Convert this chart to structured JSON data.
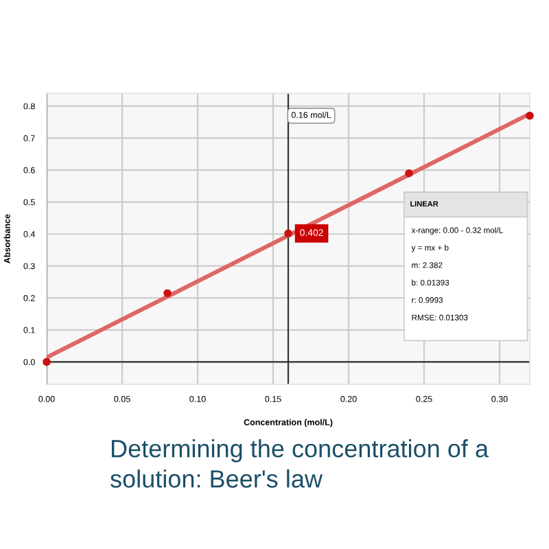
{
  "chart_data": {
    "type": "scatter",
    "title": "Determining the concentration of a solution: Beer's law",
    "xlabel": "Concentration (mol/L)",
    "ylabel": "Absorbance",
    "x": [
      0,
      0.08,
      0.16,
      0.24,
      0.32
    ],
    "series": [
      {
        "color": "#cc1111",
        "marker": "circle",
        "values": [
          0.0,
          0.215,
          0.402,
          0.59,
          0.77
        ]
      },
      {
        "type": "line",
        "color": "#e06666",
        "x": [
          0,
          0.32
        ],
        "values": [
          0.014,
          0.776
        ]
      }
    ],
    "xlim": [
      0,
      0.32
    ],
    "ylim": [
      -0.07,
      0.84
    ],
    "xticks": [
      {
        "value": 0,
        "label": "0.00"
      },
      0.05,
      {
        "value": 0.1,
        "label": "0.10"
      },
      0.15,
      {
        "value": 0.2,
        "label": "0.20"
      },
      0.25,
      {
        "value": 0.3,
        "label": "0.30"
      }
    ],
    "yticks": [
      {
        "value": 0,
        "label": "0.0"
      },
      0.1,
      0.2,
      0.3,
      0.4,
      0.5,
      0.6,
      0.7,
      0.8
    ],
    "ref_lines": [
      {
        "axis": "x",
        "value": 0.16,
        "label": "0.16 mol/L",
        "color": "#333333"
      }
    ],
    "annotations": [
      {
        "text": "0.402",
        "x": 0.16,
        "y": 0.402
      },
      "LINEAR",
      "x-range: 0.00 - 0.32 mol/L",
      "y = mx + b",
      "m: 2.382",
      "b: 0.01393",
      "r: 0.9993",
      "RMSE: 0.01303"
    ],
    "grid": true,
    "legend": false
  }
}
